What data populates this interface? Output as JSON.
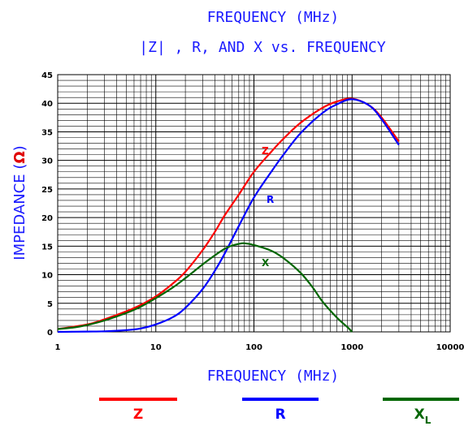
{
  "chart_data": {
    "type": "line",
    "title": "FREQUENCY (MHz)",
    "subtitle": "|Z| , R, AND X vs. FREQUENCY",
    "xlabel": "FREQUENCY (MHz)",
    "ylabel": "IMPEDANCE (",
    "ylabel_unit": "Ω",
    "ylabel_close": ")",
    "x_scale": "log",
    "xlim": [
      1,
      10000
    ],
    "ylim": [
      0,
      45
    ],
    "x_ticks": [
      "1",
      "10",
      "100",
      "1000",
      "10000"
    ],
    "y_ticks": [
      "0",
      "5",
      "10",
      "15",
      "20",
      "25",
      "30",
      "35",
      "40",
      "45"
    ],
    "grid": true,
    "legend_placement": "bottom",
    "series": [
      {
        "name": "Z",
        "color": "#ff0000",
        "x": [
          1,
          2,
          3,
          5,
          7,
          10,
          15,
          20,
          30,
          40,
          50,
          70,
          100,
          150,
          200,
          300,
          500,
          700,
          1000,
          1500,
          2000,
          3000
        ],
        "y": [
          0.5,
          1.3,
          2.2,
          3.6,
          4.7,
          6.2,
          8.5,
          10.5,
          14.3,
          17.5,
          20.3,
          24.0,
          28.0,
          31.5,
          33.8,
          36.6,
          39.2,
          40.3,
          40.8,
          39.6,
          37.5,
          33.3
        ]
      },
      {
        "name": "R",
        "color": "#0000ff",
        "x": [
          1,
          2,
          3,
          5,
          7,
          10,
          15,
          20,
          30,
          40,
          50,
          70,
          100,
          150,
          200,
          300,
          500,
          700,
          1000,
          1500,
          2000,
          3000
        ],
        "y": [
          0.0,
          0.05,
          0.1,
          0.3,
          0.6,
          1.3,
          2.6,
          4.2,
          7.5,
          10.7,
          13.6,
          18.5,
          23.5,
          28.0,
          31.0,
          34.8,
          38.3,
          39.8,
          40.7,
          39.6,
          37.2,
          32.7
        ]
      },
      {
        "name": "X",
        "legend_name": "X",
        "legend_sub": "L",
        "color": "#006600",
        "x": [
          1,
          1.5,
          2,
          3,
          5,
          7,
          10,
          15,
          20,
          30,
          40,
          50,
          60,
          70,
          80,
          100,
          150,
          200,
          300,
          400,
          500,
          700,
          900,
          1000
        ],
        "y": [
          0.5,
          0.8,
          1.2,
          2.0,
          3.3,
          4.4,
          5.9,
          7.8,
          9.4,
          11.8,
          13.4,
          14.5,
          15.1,
          15.4,
          15.5,
          15.2,
          14.2,
          12.9,
          10.3,
          7.7,
          5.3,
          2.5,
          0.8,
          0.0
        ]
      }
    ]
  }
}
